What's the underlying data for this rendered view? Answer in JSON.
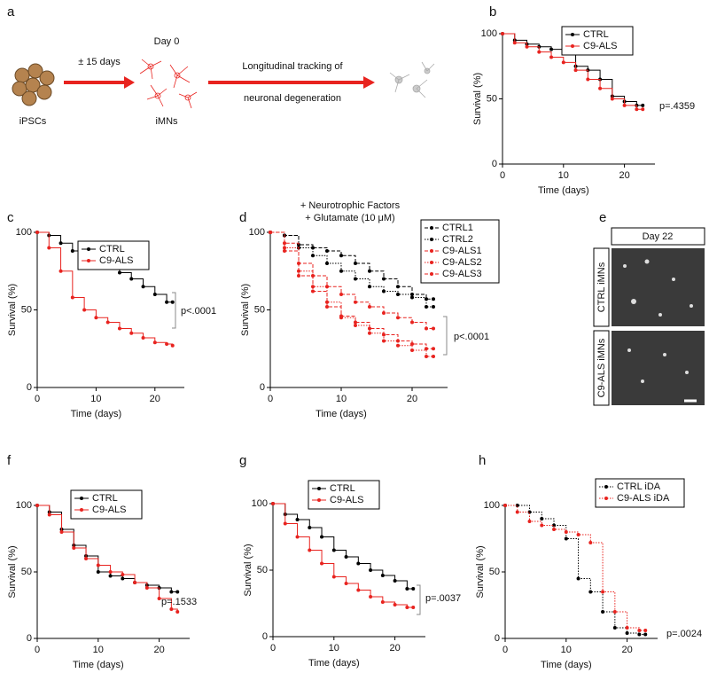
{
  "diagram": {
    "label": "a",
    "start": "iPSCs",
    "step1": "± 15 days",
    "day": "Day 0",
    "middle": "iMNs",
    "step2a": "Longitudinal tracking of",
    "step2b": "neuronal degeneration"
  },
  "images": {
    "label": "e",
    "header": "Day 22",
    "row1": "CTRL iMNs",
    "row2": "C9-ALS iMNs"
  },
  "chart_data": [
    {
      "type": "line",
      "label": "b",
      "xlabel": "Time (days)",
      "ylabel": "Survival (%)",
      "annotation": "p=.4359",
      "x": [
        0,
        2,
        4,
        6,
        8,
        10,
        12,
        14,
        16,
        18,
        20,
        22,
        23
      ],
      "xlim": [
        0,
        25
      ],
      "ylim": [
        0,
        100
      ],
      "xticks": [
        0,
        10,
        20
      ],
      "yticks": [
        0,
        50,
        100
      ],
      "series": [
        {
          "name": "CTRL",
          "color": "#000000",
          "values": [
            100,
            95,
            92,
            90,
            88,
            85,
            75,
            72,
            65,
            52,
            48,
            45,
            45
          ]
        },
        {
          "name": "C9-ALS",
          "color": "#e8231f",
          "values": [
            100,
            93,
            90,
            86,
            82,
            78,
            72,
            65,
            58,
            50,
            45,
            42,
            42
          ]
        }
      ]
    },
    {
      "type": "line",
      "label": "c",
      "xlabel": "Time (days)",
      "ylabel": "Survival (%)",
      "annotation": "p<.0001",
      "x": [
        0,
        2,
        4,
        6,
        8,
        10,
        12,
        14,
        16,
        18,
        20,
        22,
        23
      ],
      "xlim": [
        0,
        25
      ],
      "ylim": [
        0,
        100
      ],
      "xticks": [
        0,
        10,
        20
      ],
      "yticks": [
        0,
        50,
        100
      ],
      "series": [
        {
          "name": "CTRL",
          "color": "#000000",
          "values": [
            100,
            98,
            93,
            88,
            85,
            82,
            78,
            74,
            70,
            65,
            60,
            55,
            55
          ]
        },
        {
          "name": "C9-ALS",
          "color": "#e8231f",
          "values": [
            100,
            90,
            75,
            58,
            50,
            45,
            42,
            38,
            35,
            32,
            29,
            28,
            27
          ]
        }
      ]
    },
    {
      "type": "line",
      "label": "d",
      "title": "+ Neurotrophic Factors",
      "subtitle": "+ Glutamate (10 μM)",
      "xlabel": "Time (days)",
      "ylabel": "Survival (%)",
      "annotation": "p<.0001",
      "x": [
        0,
        2,
        4,
        6,
        8,
        10,
        12,
        14,
        16,
        18,
        20,
        22,
        23
      ],
      "xlim": [
        0,
        25
      ],
      "ylim": [
        0,
        100
      ],
      "xticks": [
        0,
        10,
        20
      ],
      "yticks": [
        0,
        50,
        100
      ],
      "series": [
        {
          "name": "CTRL1",
          "color": "#000000",
          "style": "dashed",
          "values": [
            100,
            98,
            92,
            90,
            88,
            85,
            80,
            75,
            70,
            65,
            60,
            57,
            57
          ]
        },
        {
          "name": "CTRL2",
          "color": "#000000",
          "style": "dotted",
          "values": [
            100,
            98,
            90,
            85,
            80,
            75,
            70,
            65,
            62,
            60,
            58,
            52,
            52
          ]
        },
        {
          "name": "C9-ALS1",
          "color": "#e8231f",
          "style": "dashed",
          "values": [
            100,
            93,
            80,
            72,
            65,
            60,
            55,
            52,
            48,
            45,
            42,
            38,
            38
          ]
        },
        {
          "name": "C9-ALS2",
          "color": "#e8231f",
          "style": "dotted",
          "values": [
            100,
            90,
            75,
            65,
            55,
            45,
            40,
            35,
            30,
            27,
            24,
            20,
            20
          ]
        },
        {
          "name": "C9-ALS3",
          "color": "#e8231f",
          "style": "dashed",
          "values": [
            100,
            88,
            72,
            62,
            52,
            46,
            42,
            38,
            34,
            30,
            28,
            25,
            25
          ]
        }
      ]
    },
    {
      "type": "line",
      "label": "f",
      "xlabel": "Time (days)",
      "ylabel": "Survival (%)",
      "annotation": "p=.1533",
      "x": [
        0,
        2,
        4,
        6,
        8,
        10,
        12,
        14,
        16,
        18,
        20,
        22,
        23
      ],
      "xlim": [
        0,
        25
      ],
      "ylim": [
        0,
        100
      ],
      "xticks": [
        0,
        10,
        20
      ],
      "yticks": [
        0,
        50,
        100
      ],
      "series": [
        {
          "name": "CTRL",
          "color": "#000000",
          "values": [
            100,
            95,
            82,
            70,
            62,
            50,
            47,
            45,
            42,
            40,
            38,
            35,
            35
          ]
        },
        {
          "name": "C9-ALS",
          "color": "#e8231f",
          "values": [
            100,
            93,
            80,
            68,
            60,
            55,
            50,
            48,
            42,
            38,
            30,
            22,
            20
          ]
        }
      ]
    },
    {
      "type": "line",
      "label": "g",
      "xlabel": "Time (days)",
      "ylabel": "Survival (%)",
      "annotation": "p=.0037",
      "x": [
        0,
        2,
        4,
        6,
        8,
        10,
        12,
        14,
        16,
        18,
        20,
        22,
        23
      ],
      "xlim": [
        0,
        25
      ],
      "ylim": [
        0,
        100
      ],
      "xticks": [
        0,
        10,
        20
      ],
      "yticks": [
        0,
        50,
        100
      ],
      "series": [
        {
          "name": "CTRL",
          "color": "#000000",
          "values": [
            100,
            92,
            88,
            82,
            75,
            65,
            60,
            55,
            50,
            46,
            42,
            36,
            36
          ]
        },
        {
          "name": "C9-ALS",
          "color": "#e8231f",
          "values": [
            100,
            85,
            75,
            65,
            55,
            45,
            40,
            35,
            30,
            26,
            24,
            22,
            22
          ]
        }
      ]
    },
    {
      "type": "line",
      "label": "h",
      "xlabel": "Time (days)",
      "ylabel": "Survival (%)",
      "annotation": "p=.0024",
      "x": [
        0,
        2,
        4,
        6,
        8,
        10,
        12,
        14,
        16,
        18,
        20,
        22,
        23
      ],
      "xlim": [
        0,
        25
      ],
      "ylim": [
        0,
        100
      ],
      "xticks": [
        0,
        10,
        20
      ],
      "yticks": [
        0,
        50,
        100
      ],
      "series": [
        {
          "name": "CTRL iDA",
          "color": "#000000",
          "style": "dotted",
          "values": [
            100,
            100,
            95,
            90,
            85,
            75,
            45,
            35,
            20,
            8,
            4,
            3,
            3
          ]
        },
        {
          "name": "C9-ALS iDA",
          "color": "#e8231f",
          "style": "dotted",
          "values": [
            100,
            95,
            88,
            85,
            82,
            80,
            78,
            72,
            35,
            20,
            8,
            6,
            6
          ]
        }
      ]
    }
  ]
}
